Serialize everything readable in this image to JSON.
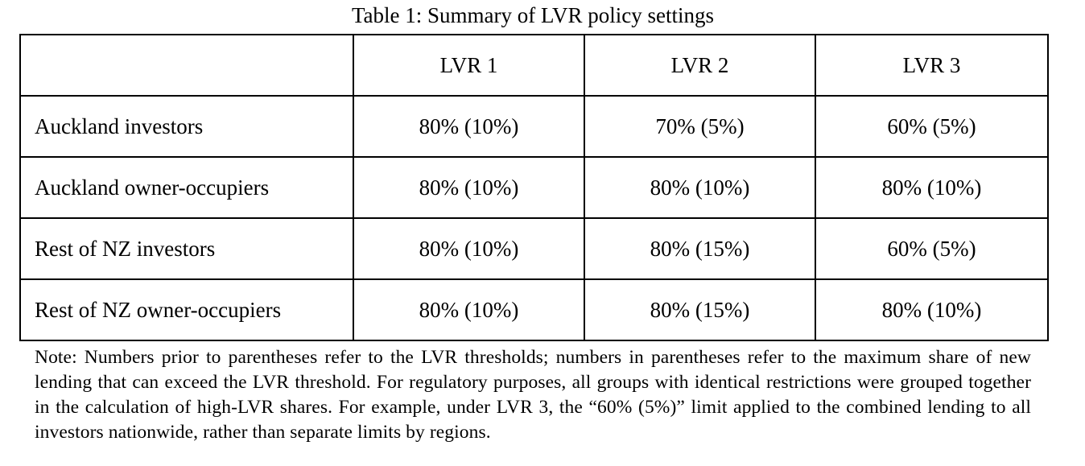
{
  "caption": "Table 1: Summary of LVR policy settings",
  "table": {
    "columns": [
      "",
      "LVR 1",
      "LVR 2",
      "LVR 3"
    ],
    "rows": [
      {
        "label": "Auckland investors",
        "values": [
          "80% (10%)",
          "70% (5%)",
          "60% (5%)"
        ]
      },
      {
        "label": "Auckland owner-occupiers",
        "values": [
          "80% (10%)",
          "80% (10%)",
          "80% (10%)"
        ]
      },
      {
        "label": "Rest of NZ investors",
        "values": [
          "80% (10%)",
          "80% (15%)",
          "60% (5%)"
        ]
      },
      {
        "label": "Rest of NZ owner-occupiers",
        "values": [
          "80% (10%)",
          "80% (15%)",
          "80% (10%)"
        ]
      }
    ]
  },
  "note": "Note: Numbers prior to parentheses refer to the LVR thresholds; numbers in parentheses refer to the maximum share of new lending that can exceed the LVR threshold. For regulatory purposes, all groups with identical restrictions were grouped together in the calculation of high-LVR shares. For example, under LVR 3, the “60% (5%)” limit applied to the combined lending to all investors nationwide, rather than separate limits by regions."
}
